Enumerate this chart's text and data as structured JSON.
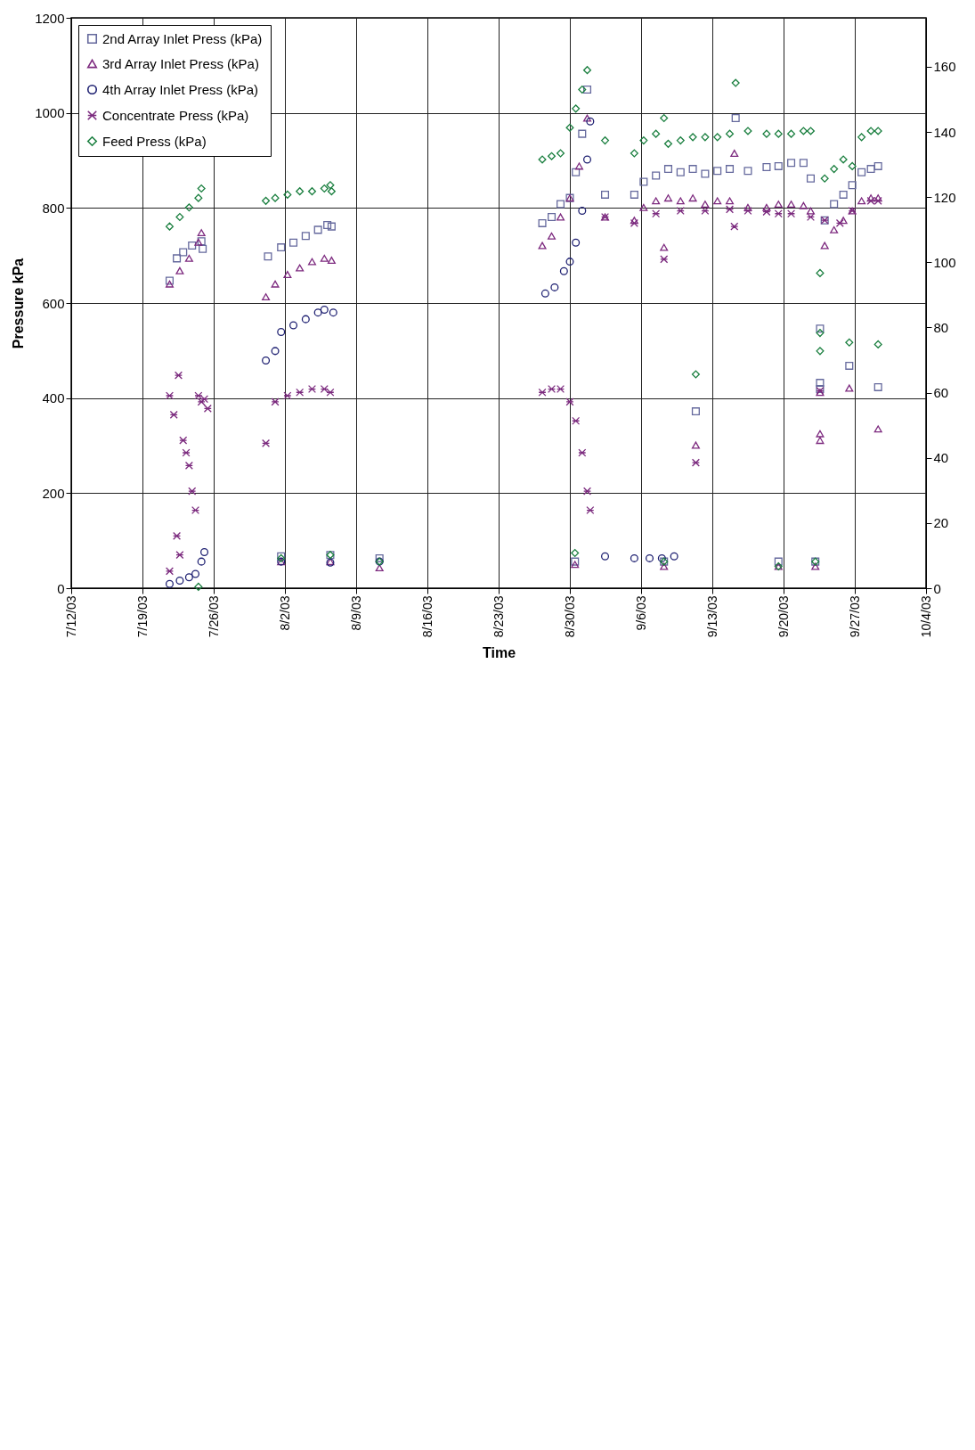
{
  "chart_data": {
    "type": "scatter",
    "xlabel": "Time",
    "ylabel": "Pressure kPa",
    "xlim": [
      "--07-12",
      "--10-04"
    ],
    "xticks": [
      {
        "value": "--07-12",
        "label": "7/12/03"
      },
      {
        "value": "--07-19",
        "label": "7/19/03"
      },
      {
        "value": "--07-26",
        "label": "7/26/03"
      },
      {
        "value": "--08-02",
        "label": "8/2/03"
      },
      {
        "value": "--08-09",
        "label": "8/9/03"
      },
      {
        "value": "--08-16",
        "label": "8/16/03"
      },
      {
        "value": "--08-23",
        "label": "8/23/03"
      },
      {
        "value": "--08-30",
        "label": "8/30/03"
      },
      {
        "value": "--09-06",
        "label": "9/6/03"
      },
      {
        "value": "--09-13",
        "label": "9/13/03"
      },
      {
        "value": "--09-20",
        "label": "9/20/03"
      },
      {
        "value": "--09-27",
        "label": "9/27/03"
      },
      {
        "value": "--10-04",
        "label": "10/4/03"
      }
    ],
    "ylim": [
      0,
      1200
    ],
    "yticks": [
      0,
      200,
      400,
      600,
      800,
      1000,
      1200
    ],
    "y2lim": [
      0,
      175
    ],
    "y2ticks": [
      0,
      20,
      40,
      60,
      80,
      100,
      120,
      140,
      160
    ],
    "grid": true,
    "legend": "top left",
    "series": [
      {
        "name": "2nd Array Inlet Press (kPa)",
        "color": "#65699d",
        "marker": "square",
        "x": [
          "--07-21T16:00",
          "--07-22T09:00",
          "--07-23T00:00",
          "--07-23T21:00",
          "--07-24T19:00",
          "--07-24T22:00",
          "--07-31T08:00",
          "--08-01T15:00",
          "--08-02T20:00",
          "--08-04T01:00",
          "--08-05T06:00",
          "--08-06T04:00",
          "--08-06T14:00",
          "--08-01T15:00",
          "--08-06T11:00",
          "--08-11T07:00",
          "--08-27T07:00",
          "--08-28T05:00",
          "--08-29T02:00",
          "--08-30T00:00",
          "--08-30T14:00",
          "--08-31T05:00",
          "--08-31T17:00",
          "--08-30T12:00",
          "--09-02T11:00",
          "--09-05T08:00",
          "--09-06T06:00",
          "--09-07T11:00",
          "--09-08T16:00",
          "--09-09T21:00",
          "--09-11T02:00",
          "--09-12T07:00",
          "--09-13T12:00",
          "--09-14T17:00",
          "--09-15T07:00",
          "--09-11T09:00",
          "--09-08T06:00",
          "--09-16T12:00",
          "--09-18T08:00",
          "--09-19T12:00",
          "--09-20T18:00",
          "--09-21T23:00",
          "--09-22T16:00",
          "--09-19T12:00",
          "--09-23T03:00",
          "--09-23T14:00",
          "--09-23T14:00",
          "--09-23T14:00",
          "--09-24T01:00",
          "--09-24T23:00",
          "--09-25T21:00",
          "--09-26T11:00",
          "--09-26T18:00",
          "--09-27T16:00",
          "--09-28T14:00",
          "--09-29T07:00",
          "--09-29T07:00"
        ],
        "values": [
          647,
          694,
          707,
          721,
          730,
          714,
          698,
          717,
          727,
          741,
          754,
          764,
          761,
          67,
          70,
          63,
          768,
          781,
          808,
          821,
          875,
          956,
          1049,
          56,
          828,
          828,
          855,
          868,
          882,
          875,
          882,
          872,
          878,
          882,
          989,
          372,
          56,
          878,
          886,
          888,
          895,
          895,
          862,
          56,
          56,
          546,
          432,
          419,
          774,
          808,
          828,
          468,
          848,
          875,
          882,
          423,
          888
        ]
      },
      {
        "name": "3rd Array Inlet Press (kPa)",
        "color": "#7d2a7f",
        "marker": "triangle",
        "x": [
          "--07-21T16:00",
          "--07-22T16:00",
          "--07-23T14:00",
          "--07-24T12:00",
          "--07-24T19:00",
          "--07-31T03:00",
          "--08-01T01:00",
          "--08-02T06:00",
          "--08-03T11:00",
          "--08-04T16:00",
          "--08-05T21:00",
          "--08-06T14:00",
          "--08-01T15:00",
          "--08-06T11:00",
          "--08-11T07:00",
          "--08-27T07:00",
          "--08-28T05:00",
          "--08-29T02:00",
          "--08-30T00:00",
          "--08-30T22:00",
          "--08-31T17:00",
          "--08-30T12:00",
          "--09-02T11:00",
          "--09-05T08:00",
          "--09-06T06:00",
          "--09-07T11:00",
          "--09-08T16:00",
          "--09-09T21:00",
          "--09-11T02:00",
          "--09-12T07:00",
          "--09-13T12:00",
          "--09-14T17:00",
          "--09-15T04:00",
          "--09-08T06:00",
          "--09-11T09:00",
          "--09-08T06:00",
          "--09-16T12:00",
          "--09-18T08:00",
          "--09-19T12:00",
          "--09-20T18:00",
          "--09-21T23:00",
          "--09-22T16:00",
          "--09-19T12:00",
          "--09-23T03:00",
          "--09-23T14:00",
          "--09-23T14:00",
          "--09-23T14:00",
          "--09-24T01:00",
          "--09-24T23:00",
          "--09-25T21:00",
          "--09-26T18:00",
          "--09-27T16:00",
          "--09-28T14:00",
          "--09-29T07:00",
          "--09-26T11:00",
          "--09-29T07:00"
        ],
        "values": [
          640,
          668,
          694,
          728,
          748,
          613,
          640,
          660,
          674,
          687,
          694,
          690,
          56,
          56,
          43,
          721,
          741,
          781,
          821,
          888,
          989,
          50,
          781,
          774,
          801,
          815,
          821,
          815,
          821,
          808,
          815,
          815,
          915,
          717,
          301,
          46,
          801,
          801,
          808,
          808,
          805,
          794,
          46,
          46,
          325,
          311,
          412,
          721,
          754,
          774,
          794,
          815,
          821,
          821,
          421,
          335
        ]
      },
      {
        "name": "4th Array Inlet Press (kPa)",
        "color": "#1f2172",
        "marker": "circle",
        "x": [
          "--07-21T16:00",
          "--07-22T16:00",
          "--07-23T14:00",
          "--07-24T05:00",
          "--07-24T19:00",
          "--07-25T02:00",
          "--07-31T03:00",
          "--08-01T01:00",
          "--08-01T15:00",
          "--08-02T20:00",
          "--08-04T01:00",
          "--08-05T06:00",
          "--08-05T21:00",
          "--08-06T18:00",
          "--08-01T15:00",
          "--08-06T11:00",
          "--08-11T07:00",
          "--08-27T14:00",
          "--08-28T12:00",
          "--08-29T10:00",
          "--08-30T00:00",
          "--08-30T14:00",
          "--08-31T05:00",
          "--08-31T17:00",
          "--09-01T00:00",
          "--09-02T11:00",
          "--09-05T08:00",
          "--09-06T20:00",
          "--09-08T01:00",
          "--09-09T06:00"
        ],
        "values": [
          9,
          16,
          23,
          30,
          56,
          76,
          479,
          499,
          539,
          553,
          566,
          580,
          586,
          580,
          56,
          54,
          56,
          620,
          633,
          667,
          687,
          727,
          794,
          902,
          982,
          67,
          63,
          63,
          63,
          67
        ]
      },
      {
        "name": "Concentrate Press (kPa)",
        "color": "#7b2a7e",
        "marker": "cross",
        "x": [
          "--07-21T16:00",
          "--07-22T02:00",
          "--07-22T13:00",
          "--07-23T00:00",
          "--07-23T07:00",
          "--07-23T14:00",
          "--07-23T21:00",
          "--07-24T05:00",
          "--07-22T09:00",
          "--07-22T16:00",
          "--07-21T16:00",
          "--07-24T12:00",
          "--07-24T19:00",
          "--07-25T02:00",
          "--07-25T10:00",
          "--07-31T03:00",
          "--08-01T01:00",
          "--08-02T06:00",
          "--08-03T11:00",
          "--08-04T16:00",
          "--08-05T21:00",
          "--08-06T11:00",
          "--08-27T07:00",
          "--08-28T05:00",
          "--08-29T02:00",
          "--08-30T00:00",
          "--08-30T14:00",
          "--08-31T05:00",
          "--08-31T17:00",
          "--09-01T00:00",
          "--09-02T11:00",
          "--09-05T08:00",
          "--09-07T11:00",
          "--09-09T21:00",
          "--09-12T07:00",
          "--09-14T17:00",
          "--09-15T04:00",
          "--09-08T06:00",
          "--09-11T09:00",
          "--09-16T12:00",
          "--09-18T08:00",
          "--09-19T12:00",
          "--09-20T18:00",
          "--09-22T16:00",
          "--09-23T14:00",
          "--09-24T01:00",
          "--09-25T13:00",
          "--09-26T18:00",
          "--09-28T14:00",
          "--09-29T07:00"
        ],
        "values": [
          405,
          365,
          448,
          311,
          285,
          258,
          204,
          164,
          110,
          70,
          36,
          405,
          392,
          398,
          378,
          305,
          392,
          405,
          412,
          419,
          419,
          412,
          412,
          419,
          419,
          392,
          352,
          285,
          204,
          164,
          781,
          768,
          788,
          794,
          794,
          797,
          761,
          692,
          264,
          794,
          792,
          788,
          788,
          781,
          415,
          774,
          768,
          794,
          815,
          815
        ]
      },
      {
        "name": "Feed Press (kPa)",
        "color": "#1a7f3f",
        "marker": "diamond",
        "x": [
          "--07-21T16:00",
          "--07-22T16:00",
          "--07-23T14:00",
          "--07-24T12:00",
          "--07-24T19:00",
          "--07-31T03:00",
          "--08-01T01:00",
          "--08-02T06:00",
          "--08-03T11:00",
          "--08-04T16:00",
          "--08-05T21:00",
          "--08-06T11:00",
          "--08-06T14:00",
          "--08-01T15:00",
          "--08-06T11:00",
          "--08-11T07:00",
          "--07-24T12:00",
          "--08-27T07:00",
          "--08-28T05:00",
          "--08-29T02:00",
          "--08-30T00:00",
          "--08-30T14:00",
          "--08-31T05:00",
          "--08-31T17:00",
          "--08-30T12:00",
          "--09-02T11:00",
          "--09-05T08:00",
          "--09-06T06:00",
          "--09-07T11:00",
          "--09-08T06:00",
          "--09-08T16:00",
          "--09-09T21:00",
          "--09-11T02:00",
          "--09-12T07:00",
          "--09-13T12:00",
          "--09-14T17:00",
          "--09-15T07:00",
          "--09-11T09:00",
          "--09-08T06:00",
          "--09-16T12:00",
          "--09-18T08:00",
          "--09-19T12:00",
          "--09-20T18:00",
          "--09-21T23:00",
          "--09-22T16:00",
          "--09-19T12:00",
          "--09-23T03:00",
          "--09-23T14:00",
          "--09-23T14:00",
          "--09-23T14:00",
          "--09-24T01:00",
          "--09-24T23:00",
          "--09-25T21:00",
          "--09-26T18:00",
          "--09-27T16:00",
          "--09-28T14:00",
          "--09-29T07:00",
          "--09-26T11:00",
          "--09-29T07:00"
        ],
        "values": [
          761,
          781,
          801,
          821,
          841,
          815,
          821,
          828,
          835,
          835,
          841,
          848,
          835,
          63,
          70,
          56,
          3,
          902,
          909,
          915,
          969,
          1009,
          1049,
          1090,
          74,
          942,
          915,
          942,
          956,
          989,
          935,
          942,
          949,
          949,
          949,
          956,
          1063,
          450,
          56,
          962,
          956,
          956,
          956,
          962,
          962,
          46,
          56,
          537,
          499,
          663,
          862,
          882,
          902,
          888,
          949,
          962,
          962,
          517,
          513
        ]
      }
    ]
  }
}
